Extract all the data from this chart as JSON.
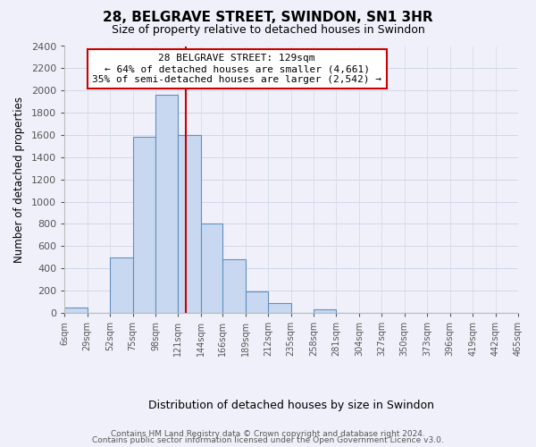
{
  "title": "28, BELGRAVE STREET, SWINDON, SN1 3HR",
  "subtitle": "Size of property relative to detached houses in Swindon",
  "xlabel": "Distribution of detached houses by size in Swindon",
  "ylabel": "Number of detached properties",
  "bin_labels": [
    "6sqm",
    "29sqm",
    "52sqm",
    "75sqm",
    "98sqm",
    "121sqm",
    "144sqm",
    "166sqm",
    "189sqm",
    "212sqm",
    "235sqm",
    "258sqm",
    "281sqm",
    "304sqm",
    "327sqm",
    "350sqm",
    "373sqm",
    "396sqm",
    "419sqm",
    "442sqm",
    "465sqm"
  ],
  "bin_lefts": [
    6,
    29,
    52,
    75,
    98,
    121,
    144,
    166,
    189,
    212,
    235,
    258,
    281,
    304,
    327,
    350,
    373,
    396,
    419,
    442,
    465
  ],
  "bar_heights": [
    50,
    0,
    500,
    1580,
    1960,
    1600,
    800,
    480,
    190,
    90,
    0,
    35,
    0,
    0,
    0,
    0,
    0,
    0,
    0,
    0
  ],
  "bar_color": "#c8d8f0",
  "bar_edge_color": "#6090c0",
  "property_line_x": 129,
  "annotation_title": "28 BELGRAVE STREET: 129sqm",
  "annotation_line1": "← 64% of detached houses are smaller (4,661)",
  "annotation_line2": "35% of semi-detached houses are larger (2,542) →",
  "annotation_box_color": "#ffffff",
  "annotation_box_edge": "#cc0000",
  "vline_color": "#cc0000",
  "ylim": [
    0,
    2400
  ],
  "yticks": [
    0,
    200,
    400,
    600,
    800,
    1000,
    1200,
    1400,
    1600,
    1800,
    2000,
    2200,
    2400
  ],
  "footer1": "Contains HM Land Registry data © Crown copyright and database right 2024.",
  "footer2": "Contains public sector information licensed under the Open Government Licence v3.0.",
  "bg_color": "#f0f0fa",
  "grid_color": "#d0d8e8"
}
